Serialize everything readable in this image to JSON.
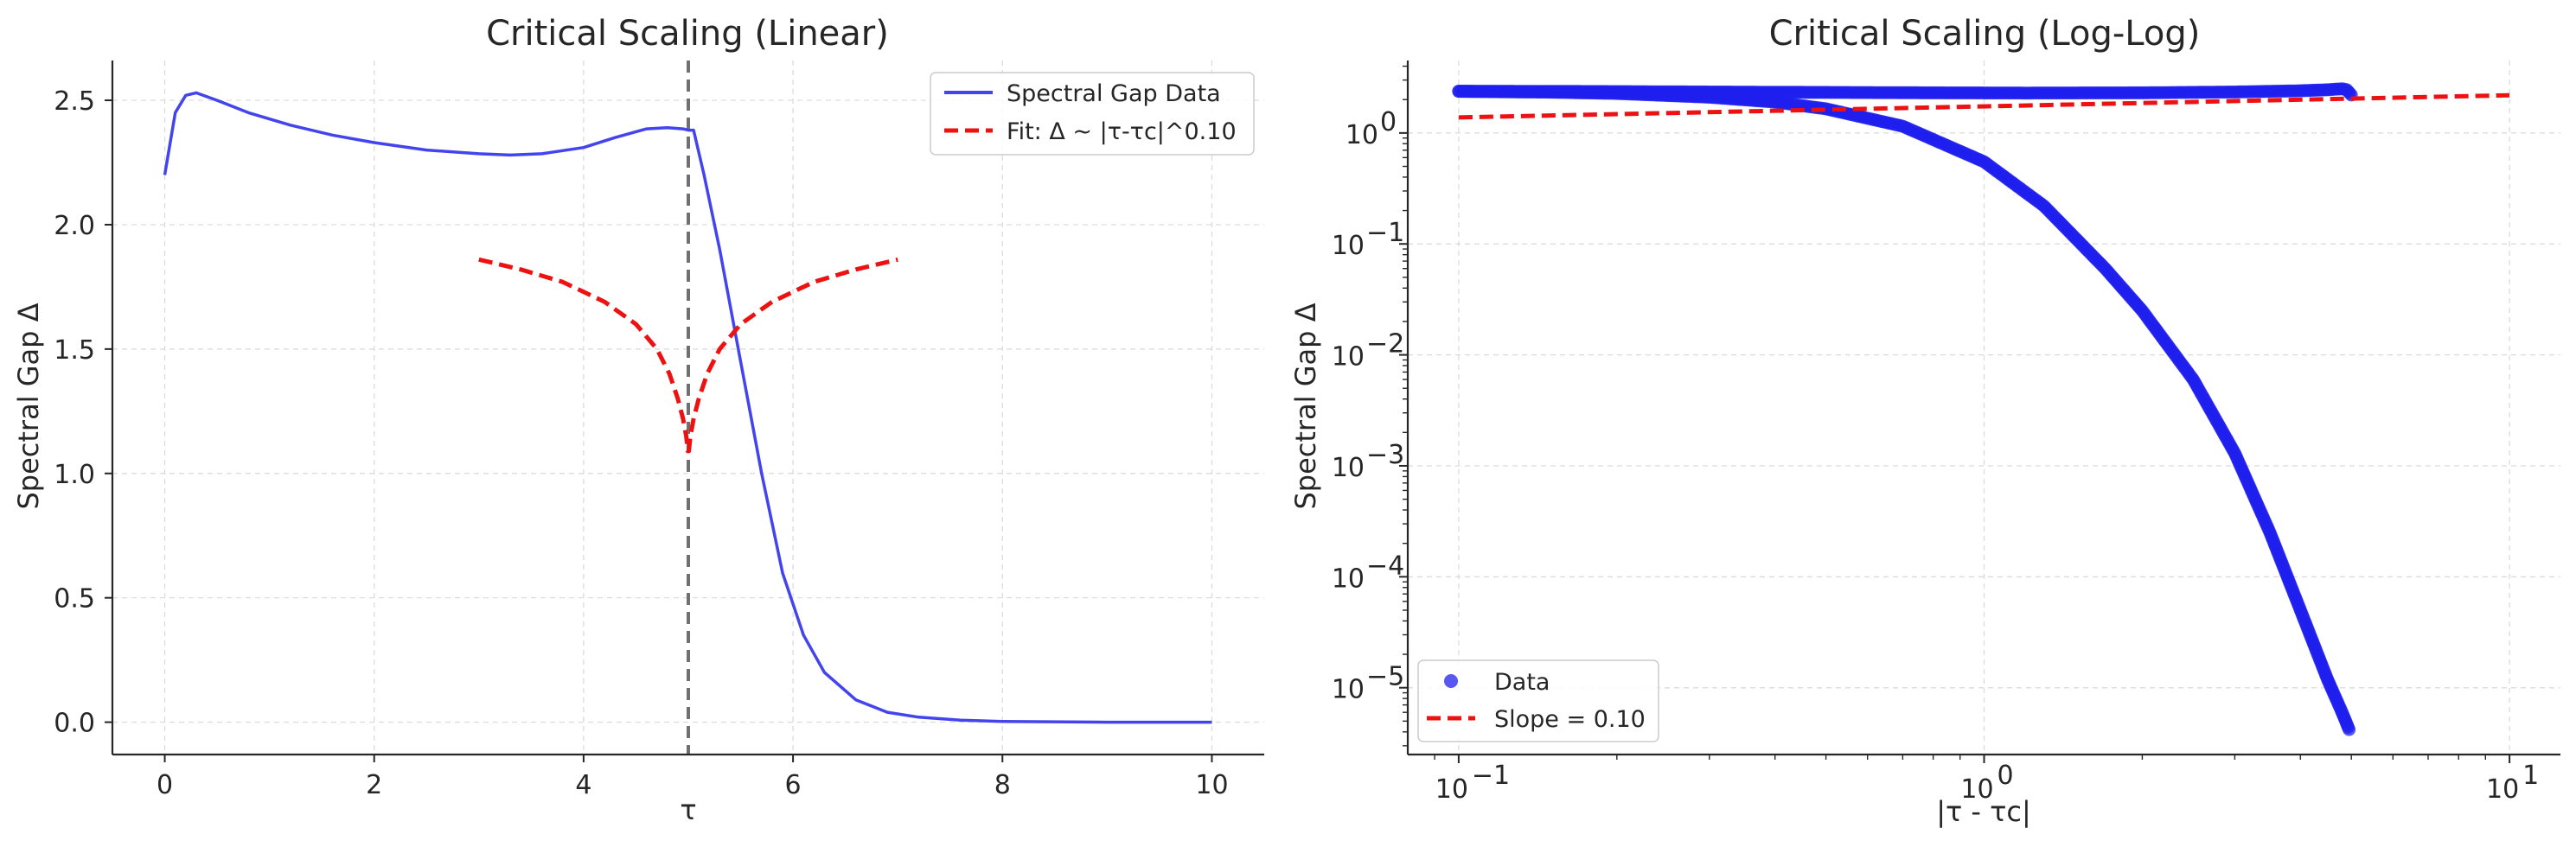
{
  "chart_data": [
    {
      "type": "line",
      "title": "Critical Scaling (Linear)",
      "xlabel": "τ",
      "ylabel": "Spectral Gap Δ",
      "xlim": [
        -0.5,
        10.5
      ],
      "ylim": [
        -0.13,
        2.66
      ],
      "xticks": [
        0,
        2,
        4,
        6,
        8,
        10
      ],
      "xtick_labels": [
        "0",
        "2",
        "4",
        "6",
        "8",
        "10"
      ],
      "yticks": [
        0.0,
        0.5,
        1.0,
        1.5,
        2.0,
        2.5
      ],
      "ytick_labels": [
        "0.0",
        "0.5",
        "1.0",
        "1.5",
        "2.0",
        "2.5"
      ],
      "grid": true,
      "legend_position": "top-right",
      "critical_line": {
        "x": 5.0,
        "color": "#707070"
      },
      "series": [
        {
          "name": "Spectral Gap Data",
          "color": "#4444ee",
          "x": [
            0,
            0.1,
            0.2,
            0.3,
            0.5,
            0.8,
            1.2,
            1.6,
            2.0,
            2.5,
            3.0,
            3.3,
            3.6,
            4.0,
            4.3,
            4.6,
            4.8,
            4.95,
            5.0,
            5.05,
            5.15,
            5.3,
            5.5,
            5.7,
            5.9,
            6.1,
            6.3,
            6.6,
            6.9,
            7.2,
            7.6,
            8.0,
            9.0,
            10.0
          ],
          "y": [
            2.2,
            2.45,
            2.52,
            2.53,
            2.5,
            2.45,
            2.4,
            2.36,
            2.33,
            2.3,
            2.285,
            2.28,
            2.285,
            2.31,
            2.35,
            2.385,
            2.39,
            2.385,
            2.38,
            2.38,
            2.2,
            1.9,
            1.45,
            1.0,
            0.6,
            0.35,
            0.2,
            0.09,
            0.04,
            0.02,
            0.008,
            0.003,
            0.0,
            0.0
          ]
        },
        {
          "name": "Fit: Δ ~ |τ-τc|^0.10",
          "color": "#ee1111",
          "style": "dashed",
          "x": [
            3.0,
            3.4,
            3.8,
            4.2,
            4.5,
            4.7,
            4.82,
            4.9,
            4.95,
            4.98,
            4.995,
            5.005,
            5.02,
            5.05,
            5.1,
            5.18,
            5.3,
            5.5,
            5.8,
            6.2,
            6.6,
            7.0
          ],
          "y": [
            1.86,
            1.82,
            1.77,
            1.69,
            1.6,
            1.5,
            1.4,
            1.3,
            1.22,
            1.15,
            1.09,
            1.09,
            1.15,
            1.22,
            1.3,
            1.4,
            1.5,
            1.6,
            1.69,
            1.77,
            1.82,
            1.86
          ]
        }
      ]
    },
    {
      "type": "scatter",
      "title": "Critical Scaling (Log-Log)",
      "xlabel": "|τ - τc|",
      "ylabel": "Spectral Gap Δ",
      "xscale": "log",
      "yscale": "log",
      "xlim": [
        0.08,
        12.5
      ],
      "ylim": [
        2.5e-06,
        4.5
      ],
      "xticks": [
        0.1,
        1,
        10
      ],
      "xtick_labels": [
        "10",
        "10",
        "10"
      ],
      "xtick_exponents": [
        "−1",
        "0",
        "1"
      ],
      "yticks": [
        1e-05,
        0.0001,
        0.001,
        0.01,
        0.1,
        1
      ],
      "ytick_labels": [
        "10",
        "10",
        "10",
        "10",
        "10",
        "10"
      ],
      "ytick_exponents": [
        "−5",
        "−4",
        "−3",
        "−2",
        "−1",
        "0"
      ],
      "grid": true,
      "legend_position": "bottom-left",
      "series": [
        {
          "name": "Data",
          "color": "#1f1fee",
          "marker": "circle",
          "branches": [
            {
              "x": [
                0.1,
                0.15,
                0.2,
                0.3,
                0.5,
                0.8,
                1.2,
                2.0,
                3.0,
                4.0,
                4.5,
                4.8,
                4.9,
                5.0
              ],
              "y": [
                2.38,
                2.37,
                2.36,
                2.34,
                2.32,
                2.3,
                2.29,
                2.3,
                2.34,
                2.4,
                2.45,
                2.5,
                2.45,
                2.2
              ]
            },
            {
              "x": [
                0.1,
                0.15,
                0.2,
                0.3,
                0.4,
                0.5,
                0.7,
                1.0,
                1.3,
                1.7,
                2.0,
                2.5,
                3.0,
                3.5,
                4.0,
                4.5,
                4.8,
                4.95
              ],
              "y": [
                2.37,
                2.33,
                2.27,
                2.1,
                1.9,
                1.65,
                1.15,
                0.55,
                0.22,
                0.06,
                0.025,
                0.006,
                0.0013,
                0.00025,
                5e-05,
                1.2e-05,
                6e-06,
                4.2e-06
              ]
            }
          ]
        },
        {
          "name": "Slope = 0.10",
          "color": "#ee1111",
          "style": "dashed",
          "x": [
            0.1,
            10
          ],
          "y": [
            1.38,
            2.19
          ]
        }
      ]
    }
  ]
}
